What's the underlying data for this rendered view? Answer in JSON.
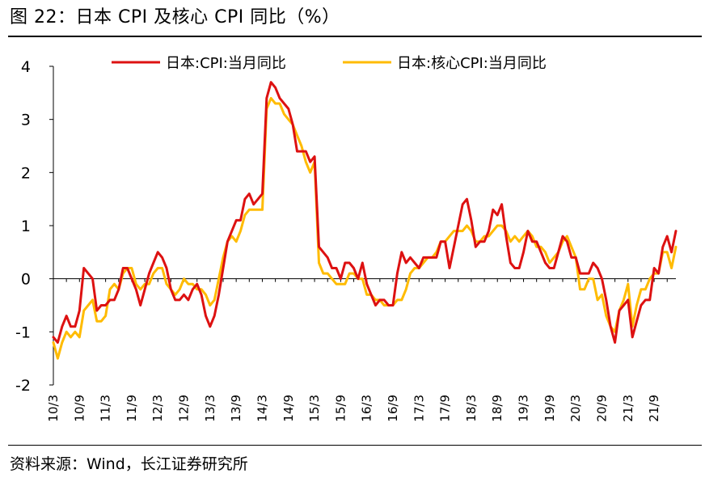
{
  "figure": {
    "title": "图 22：日本 CPI 及核心 CPI 同比（%）",
    "source": "资料来源：Wind，长江证券研究所"
  },
  "colors": {
    "series_cpi": "#dd1111",
    "series_core": "#ffbb00",
    "axis": "#000000"
  },
  "chart_data": {
    "type": "line",
    "title": "",
    "xlabel": "",
    "ylabel": "",
    "ylim": [
      -2,
      4
    ],
    "yticks": [
      -2,
      -1,
      0,
      1,
      2,
      3,
      4
    ],
    "legend_position": "top",
    "grid": false,
    "x_start": "2010-03",
    "x_end": "2022-02",
    "x_tick_labels": [
      "10/3",
      "10/9",
      "11/3",
      "11/9",
      "12/3",
      "12/9",
      "13/3",
      "13/9",
      "14/3",
      "14/9",
      "15/3",
      "15/9",
      "16/3",
      "16/9",
      "17/3",
      "17/9",
      "18/3",
      "18/9",
      "19/3",
      "19/9",
      "20/3",
      "20/9",
      "21/3",
      "21/9"
    ],
    "series": [
      {
        "name": "日本:CPI:当月同比",
        "color": "#dd1111",
        "points": [
          [
            "2010-03",
            -1.1
          ],
          [
            "2010-04",
            -1.2
          ],
          [
            "2010-05",
            -0.9
          ],
          [
            "2010-06",
            -0.7
          ],
          [
            "2010-07",
            -0.9
          ],
          [
            "2010-08",
            -0.9
          ],
          [
            "2010-09",
            -0.6
          ],
          [
            "2010-10",
            0.2
          ],
          [
            "2010-11",
            0.1
          ],
          [
            "2010-12",
            0.0
          ],
          [
            "2011-01",
            -0.6
          ],
          [
            "2011-02",
            -0.5
          ],
          [
            "2011-03",
            -0.5
          ],
          [
            "2011-04",
            -0.4
          ],
          [
            "2011-05",
            -0.4
          ],
          [
            "2011-06",
            -0.2
          ],
          [
            "2011-07",
            0.2
          ],
          [
            "2011-08",
            0.2
          ],
          [
            "2011-09",
            0.0
          ],
          [
            "2011-10",
            -0.2
          ],
          [
            "2011-11",
            -0.5
          ],
          [
            "2011-12",
            -0.2
          ],
          [
            "2012-01",
            0.1
          ],
          [
            "2012-02",
            0.3
          ],
          [
            "2012-03",
            0.5
          ],
          [
            "2012-04",
            0.4
          ],
          [
            "2012-05",
            0.2
          ],
          [
            "2012-06",
            -0.2
          ],
          [
            "2012-07",
            -0.4
          ],
          [
            "2012-08",
            -0.4
          ],
          [
            "2012-09",
            -0.3
          ],
          [
            "2012-10",
            -0.4
          ],
          [
            "2012-11",
            -0.2
          ],
          [
            "2012-12",
            -0.1
          ],
          [
            "2013-01",
            -0.3
          ],
          [
            "2013-02",
            -0.7
          ],
          [
            "2013-03",
            -0.9
          ],
          [
            "2013-04",
            -0.7
          ],
          [
            "2013-05",
            -0.3
          ],
          [
            "2013-06",
            0.2
          ],
          [
            "2013-07",
            0.7
          ],
          [
            "2013-08",
            0.9
          ],
          [
            "2013-09",
            1.1
          ],
          [
            "2013-10",
            1.1
          ],
          [
            "2013-11",
            1.5
          ],
          [
            "2013-12",
            1.6
          ],
          [
            "2014-01",
            1.4
          ],
          [
            "2014-02",
            1.5
          ],
          [
            "2014-03",
            1.6
          ],
          [
            "2014-04",
            3.4
          ],
          [
            "2014-05",
            3.7
          ],
          [
            "2014-06",
            3.6
          ],
          [
            "2014-07",
            3.4
          ],
          [
            "2014-08",
            3.3
          ],
          [
            "2014-09",
            3.2
          ],
          [
            "2014-10",
            2.9
          ],
          [
            "2014-11",
            2.4
          ],
          [
            "2014-12",
            2.4
          ],
          [
            "2015-01",
            2.4
          ],
          [
            "2015-02",
            2.2
          ],
          [
            "2015-03",
            2.3
          ],
          [
            "2015-04",
            0.6
          ],
          [
            "2015-05",
            0.5
          ],
          [
            "2015-06",
            0.4
          ],
          [
            "2015-07",
            0.2
          ],
          [
            "2015-08",
            0.2
          ],
          [
            "2015-09",
            0.0
          ],
          [
            "2015-10",
            0.3
          ],
          [
            "2015-11",
            0.3
          ],
          [
            "2015-12",
            0.2
          ],
          [
            "2016-01",
            0.0
          ],
          [
            "2016-02",
            0.3
          ],
          [
            "2016-03",
            -0.1
          ],
          [
            "2016-04",
            -0.3
          ],
          [
            "2016-05",
            -0.5
          ],
          [
            "2016-06",
            -0.4
          ],
          [
            "2016-07",
            -0.4
          ],
          [
            "2016-08",
            -0.5
          ],
          [
            "2016-09",
            -0.5
          ],
          [
            "2016-10",
            0.1
          ],
          [
            "2016-11",
            0.5
          ],
          [
            "2016-12",
            0.3
          ],
          [
            "2017-01",
            0.4
          ],
          [
            "2017-02",
            0.3
          ],
          [
            "2017-03",
            0.2
          ],
          [
            "2017-04",
            0.4
          ],
          [
            "2017-05",
            0.4
          ],
          [
            "2017-06",
            0.4
          ],
          [
            "2017-07",
            0.4
          ],
          [
            "2017-08",
            0.7
          ],
          [
            "2017-09",
            0.7
          ],
          [
            "2017-10",
            0.2
          ],
          [
            "2017-11",
            0.6
          ],
          [
            "2017-12",
            1.0
          ],
          [
            "2018-01",
            1.4
          ],
          [
            "2018-02",
            1.5
          ],
          [
            "2018-03",
            1.1
          ],
          [
            "2018-04",
            0.6
          ],
          [
            "2018-05",
            0.7
          ],
          [
            "2018-06",
            0.7
          ],
          [
            "2018-07",
            0.9
          ],
          [
            "2018-08",
            1.3
          ],
          [
            "2018-09",
            1.2
          ],
          [
            "2018-10",
            1.4
          ],
          [
            "2018-11",
            0.8
          ],
          [
            "2018-12",
            0.3
          ],
          [
            "2019-01",
            0.2
          ],
          [
            "2019-02",
            0.2
          ],
          [
            "2019-03",
            0.5
          ],
          [
            "2019-04",
            0.9
          ],
          [
            "2019-05",
            0.7
          ],
          [
            "2019-06",
            0.7
          ],
          [
            "2019-07",
            0.5
          ],
          [
            "2019-08",
            0.3
          ],
          [
            "2019-09",
            0.2
          ],
          [
            "2019-10",
            0.2
          ],
          [
            "2019-11",
            0.5
          ],
          [
            "2019-12",
            0.8
          ],
          [
            "2020-01",
            0.7
          ],
          [
            "2020-02",
            0.4
          ],
          [
            "2020-03",
            0.4
          ],
          [
            "2020-04",
            0.1
          ],
          [
            "2020-05",
            0.1
          ],
          [
            "2020-06",
            0.1
          ],
          [
            "2020-07",
            0.3
          ],
          [
            "2020-08",
            0.2
          ],
          [
            "2020-09",
            0.0
          ],
          [
            "2020-10",
            -0.4
          ],
          [
            "2020-11",
            -0.9
          ],
          [
            "2020-12",
            -1.2
          ],
          [
            "2021-01",
            -0.6
          ],
          [
            "2021-02",
            -0.5
          ],
          [
            "2021-03",
            -0.4
          ],
          [
            "2021-04",
            -1.1
          ],
          [
            "2021-05",
            -0.8
          ],
          [
            "2021-06",
            -0.5
          ],
          [
            "2021-07",
            -0.4
          ],
          [
            "2021-08",
            -0.4
          ],
          [
            "2021-09",
            0.2
          ],
          [
            "2021-10",
            0.1
          ],
          [
            "2021-11",
            0.6
          ],
          [
            "2021-12",
            0.8
          ],
          [
            "2022-01",
            0.5
          ],
          [
            "2022-02",
            0.9
          ]
        ]
      },
      {
        "name": "日本:核心CPI:当月同比",
        "color": "#ffbb00",
        "points": [
          [
            "2010-03",
            -1.2
          ],
          [
            "2010-04",
            -1.5
          ],
          [
            "2010-05",
            -1.2
          ],
          [
            "2010-06",
            -1.0
          ],
          [
            "2010-07",
            -1.1
          ],
          [
            "2010-08",
            -1.0
          ],
          [
            "2010-09",
            -1.1
          ],
          [
            "2010-10",
            -0.6
          ],
          [
            "2010-11",
            -0.5
          ],
          [
            "2010-12",
            -0.4
          ],
          [
            "2011-01",
            -0.8
          ],
          [
            "2011-02",
            -0.8
          ],
          [
            "2011-03",
            -0.7
          ],
          [
            "2011-04",
            -0.2
          ],
          [
            "2011-05",
            -0.1
          ],
          [
            "2011-06",
            -0.2
          ],
          [
            "2011-07",
            0.1
          ],
          [
            "2011-08",
            0.2
          ],
          [
            "2011-09",
            0.2
          ],
          [
            "2011-10",
            -0.1
          ],
          [
            "2011-11",
            -0.2
          ],
          [
            "2011-12",
            -0.1
          ],
          [
            "2012-01",
            -0.1
          ],
          [
            "2012-02",
            0.1
          ],
          [
            "2012-03",
            0.2
          ],
          [
            "2012-04",
            0.2
          ],
          [
            "2012-05",
            -0.1
          ],
          [
            "2012-06",
            -0.2
          ],
          [
            "2012-07",
            -0.3
          ],
          [
            "2012-08",
            -0.2
          ],
          [
            "2012-09",
            0.0
          ],
          [
            "2012-10",
            -0.1
          ],
          [
            "2012-11",
            -0.1
          ],
          [
            "2012-12",
            -0.2
          ],
          [
            "2013-01",
            -0.2
          ],
          [
            "2013-02",
            -0.3
          ],
          [
            "2013-03",
            -0.5
          ],
          [
            "2013-04",
            -0.4
          ],
          [
            "2013-05",
            0.0
          ],
          [
            "2013-06",
            0.4
          ],
          [
            "2013-07",
            0.7
          ],
          [
            "2013-08",
            0.8
          ],
          [
            "2013-09",
            0.7
          ],
          [
            "2013-10",
            0.9
          ],
          [
            "2013-11",
            1.2
          ],
          [
            "2013-12",
            1.3
          ],
          [
            "2014-01",
            1.3
          ],
          [
            "2014-02",
            1.3
          ],
          [
            "2014-03",
            1.3
          ],
          [
            "2014-04",
            3.2
          ],
          [
            "2014-05",
            3.4
          ],
          [
            "2014-06",
            3.3
          ],
          [
            "2014-07",
            3.3
          ],
          [
            "2014-08",
            3.1
          ],
          [
            "2014-09",
            3.0
          ],
          [
            "2014-10",
            2.9
          ],
          [
            "2014-11",
            2.7
          ],
          [
            "2014-12",
            2.5
          ],
          [
            "2015-01",
            2.2
          ],
          [
            "2015-02",
            2.0
          ],
          [
            "2015-03",
            2.2
          ],
          [
            "2015-04",
            0.3
          ],
          [
            "2015-05",
            0.1
          ],
          [
            "2015-06",
            0.1
          ],
          [
            "2015-07",
            0.0
          ],
          [
            "2015-08",
            -0.1
          ],
          [
            "2015-09",
            -0.1
          ],
          [
            "2015-10",
            -0.1
          ],
          [
            "2015-11",
            0.1
          ],
          [
            "2015-12",
            0.1
          ],
          [
            "2016-01",
            0.0
          ],
          [
            "2016-02",
            0.0
          ],
          [
            "2016-03",
            -0.3
          ],
          [
            "2016-04",
            -0.3
          ],
          [
            "2016-05",
            -0.4
          ],
          [
            "2016-06",
            -0.4
          ],
          [
            "2016-07",
            -0.5
          ],
          [
            "2016-08",
            -0.5
          ],
          [
            "2016-09",
            -0.5
          ],
          [
            "2016-10",
            -0.4
          ],
          [
            "2016-11",
            -0.4
          ],
          [
            "2016-12",
            -0.2
          ],
          [
            "2017-01",
            0.1
          ],
          [
            "2017-02",
            0.2
          ],
          [
            "2017-03",
            0.2
          ],
          [
            "2017-04",
            0.3
          ],
          [
            "2017-05",
            0.4
          ],
          [
            "2017-06",
            0.4
          ],
          [
            "2017-07",
            0.5
          ],
          [
            "2017-08",
            0.7
          ],
          [
            "2017-09",
            0.7
          ],
          [
            "2017-10",
            0.8
          ],
          [
            "2017-11",
            0.9
          ],
          [
            "2017-12",
            0.9
          ],
          [
            "2018-01",
            0.9
          ],
          [
            "2018-02",
            1.0
          ],
          [
            "2018-03",
            0.9
          ],
          [
            "2018-04",
            0.7
          ],
          [
            "2018-05",
            0.7
          ],
          [
            "2018-06",
            0.8
          ],
          [
            "2018-07",
            0.8
          ],
          [
            "2018-08",
            0.9
          ],
          [
            "2018-09",
            1.0
          ],
          [
            "2018-10",
            1.0
          ],
          [
            "2018-11",
            0.9
          ],
          [
            "2018-12",
            0.7
          ],
          [
            "2019-01",
            0.8
          ],
          [
            "2019-02",
            0.7
          ],
          [
            "2019-03",
            0.8
          ],
          [
            "2019-04",
            0.9
          ],
          [
            "2019-05",
            0.8
          ],
          [
            "2019-06",
            0.6
          ],
          [
            "2019-07",
            0.6
          ],
          [
            "2019-08",
            0.5
          ],
          [
            "2019-09",
            0.3
          ],
          [
            "2019-10",
            0.4
          ],
          [
            "2019-11",
            0.5
          ],
          [
            "2019-12",
            0.7
          ],
          [
            "2020-01",
            0.8
          ],
          [
            "2020-02",
            0.6
          ],
          [
            "2020-03",
            0.4
          ],
          [
            "2020-04",
            -0.2
          ],
          [
            "2020-05",
            -0.2
          ],
          [
            "2020-06",
            0.0
          ],
          [
            "2020-07",
            0.0
          ],
          [
            "2020-08",
            -0.4
          ],
          [
            "2020-09",
            -0.3
          ],
          [
            "2020-10",
            -0.7
          ],
          [
            "2020-11",
            -0.9
          ],
          [
            "2020-12",
            -1.0
          ],
          [
            "2021-01",
            -0.6
          ],
          [
            "2021-02",
            -0.4
          ],
          [
            "2021-03",
            -0.1
          ],
          [
            "2021-04",
            -0.9
          ],
          [
            "2021-05",
            -0.5
          ],
          [
            "2021-06",
            -0.2
          ],
          [
            "2021-07",
            -0.2
          ],
          [
            "2021-08",
            0.0
          ],
          [
            "2021-09",
            0.1
          ],
          [
            "2021-10",
            0.1
          ],
          [
            "2021-11",
            0.5
          ],
          [
            "2021-12",
            0.5
          ],
          [
            "2022-01",
            0.2
          ],
          [
            "2022-02",
            0.6
          ]
        ]
      }
    ]
  }
}
